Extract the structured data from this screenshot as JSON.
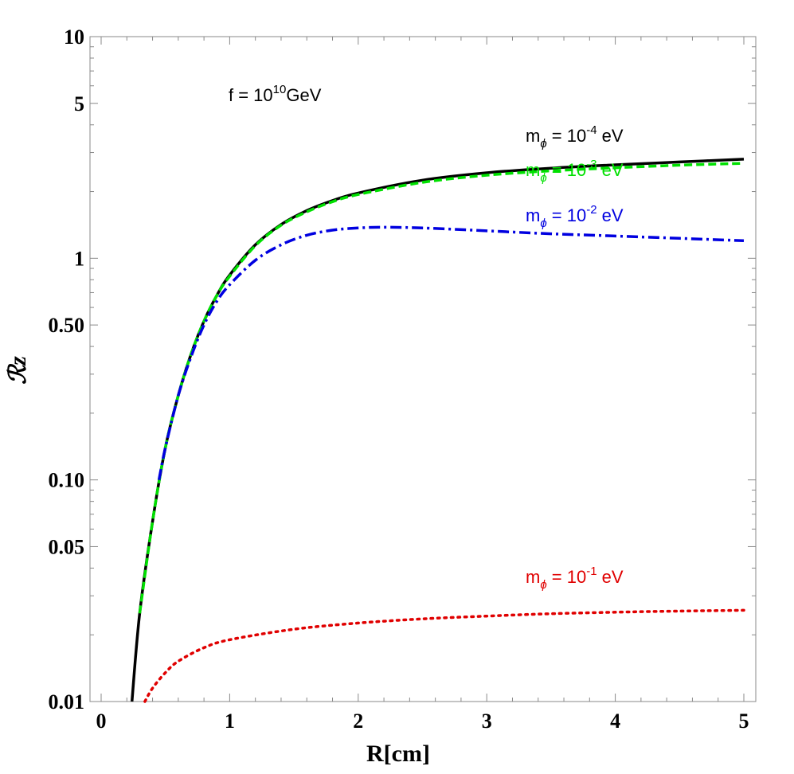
{
  "chart_data": {
    "type": "line",
    "xlabel": "R[cm]",
    "ylabel": "ℛz",
    "xlim": [
      0,
      5
    ],
    "ylim": [
      0.01,
      10
    ],
    "yscale": "log",
    "grid": false,
    "x_ticks": [
      "0",
      "1",
      "2",
      "3",
      "4",
      "5"
    ],
    "y_ticks": [
      {
        "value": 0.01,
        "label": "0.01"
      },
      {
        "value": 0.05,
        "label": "0.05"
      },
      {
        "value": 0.1,
        "label": "0.10"
      },
      {
        "value": 0.5,
        "label": "0.50"
      },
      {
        "value": 1,
        "label": "1"
      },
      {
        "value": 5,
        "label": "5"
      },
      {
        "value": 10,
        "label": "10"
      }
    ],
    "annotation": {
      "text": "f = 10",
      "sup": "10",
      "suffix": "GeV"
    },
    "series": [
      {
        "name": "m_ϕ = 10^-4 eV",
        "label": {
          "base": "m",
          "sub": "ϕ",
          "mid": " = 10",
          "sup": "-4",
          "end": " eV"
        },
        "color": "#000000",
        "style": "solid",
        "x": [
          0.24,
          0.3,
          0.4,
          0.5,
          0.6,
          0.7,
          0.8,
          0.9,
          1.0,
          1.2,
          1.4,
          1.6,
          1.8,
          2.0,
          2.5,
          3.0,
          3.5,
          4.0,
          4.5,
          5.0
        ],
        "y": [
          0.01,
          0.025,
          0.065,
          0.14,
          0.24,
          0.37,
          0.52,
          0.68,
          0.84,
          1.15,
          1.42,
          1.64,
          1.82,
          1.97,
          2.25,
          2.43,
          2.55,
          2.64,
          2.72,
          2.8
        ]
      },
      {
        "name": "m_ϕ = 10^-3 eV",
        "label": {
          "base": "m",
          "sub": "ϕ",
          "mid": " = 10",
          "sup": "-3",
          "end": " eV"
        },
        "color": "#00e000",
        "style": "dashed",
        "x": [
          0.3,
          0.4,
          0.5,
          0.6,
          0.7,
          0.8,
          0.9,
          1.0,
          1.2,
          1.4,
          1.6,
          1.8,
          2.0,
          2.5,
          3.0,
          3.5,
          4.0,
          4.5,
          5.0
        ],
        "y": [
          0.025,
          0.065,
          0.14,
          0.24,
          0.37,
          0.52,
          0.68,
          0.83,
          1.14,
          1.41,
          1.62,
          1.8,
          1.94,
          2.2,
          2.37,
          2.48,
          2.56,
          2.63,
          2.68
        ]
      },
      {
        "name": "m_ϕ = 10^-2 eV",
        "label": {
          "base": "m",
          "sub": "ϕ",
          "mid": " = 10",
          "sup": "-2",
          "end": " eV"
        },
        "color": "#0000e0",
        "style": "dashdot",
        "x": [
          0.45,
          0.5,
          0.6,
          0.7,
          0.8,
          0.9,
          1.0,
          1.2,
          1.4,
          1.6,
          1.8,
          2.0,
          2.2,
          2.5,
          3.0,
          3.5,
          4.0,
          4.5,
          5.0
        ],
        "y": [
          0.1,
          0.14,
          0.24,
          0.36,
          0.5,
          0.64,
          0.76,
          0.98,
          1.15,
          1.27,
          1.34,
          1.37,
          1.38,
          1.37,
          1.33,
          1.29,
          1.26,
          1.23,
          1.2
        ]
      },
      {
        "name": "m_ϕ = 10^-1 eV",
        "label": {
          "base": "m",
          "sub": "ϕ",
          "mid": " = 10",
          "sup": "-1",
          "end": " eV"
        },
        "color": "#e00000",
        "style": "dotted",
        "x": [
          0.34,
          0.4,
          0.5,
          0.6,
          0.8,
          1.0,
          1.5,
          2.0,
          2.5,
          3.0,
          3.5,
          4.0,
          4.5,
          5.0
        ],
        "y": [
          0.01,
          0.0115,
          0.0135,
          0.0152,
          0.0175,
          0.019,
          0.0212,
          0.0226,
          0.0236,
          0.0243,
          0.0249,
          0.0253,
          0.0256,
          0.0258
        ]
      }
    ]
  }
}
